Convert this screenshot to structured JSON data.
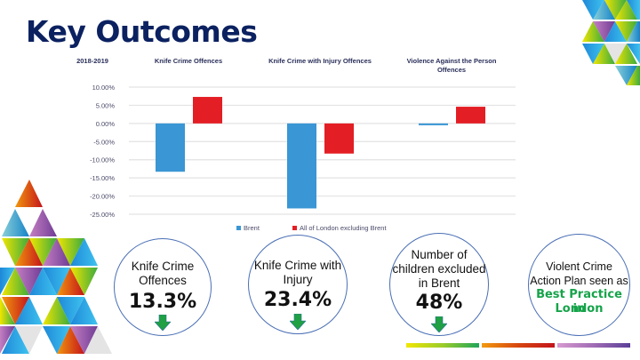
{
  "slide": {
    "title": "Key Outcomes"
  },
  "chart_data": {
    "type": "bar",
    "period_label": "2018-2019",
    "categories": [
      "Knife Crime Offences",
      "Knife Crime with Injury Offences",
      "Violence Against the Person Offences"
    ],
    "category_label_lines": [
      [
        "Knife Crime Offences"
      ],
      [
        "Knife Crime with Injury Offences"
      ],
      [
        "Violence Against the Person",
        "Offences"
      ]
    ],
    "series": [
      {
        "name": "Brent",
        "color": "#3a96d4",
        "values": [
          -13.3,
          -23.4,
          -0.5
        ]
      },
      {
        "name": "All of London excluding Brent",
        "color": "#e31e24",
        "values": [
          7.3,
          -8.3,
          4.6
        ]
      }
    ],
    "ylim": [
      -25,
      10
    ],
    "yticks": [
      10,
      5,
      0,
      -5,
      -10,
      -15,
      -20,
      -25
    ],
    "ytick_labels": [
      "10.00%",
      "5.00%",
      "0.00%",
      "-5.00%",
      "-10.00%",
      "-15.00%",
      "-20.00%",
      "-25.00%"
    ],
    "grid": true,
    "legend": "bottom",
    "xlabel": "",
    "ylabel": ""
  },
  "outcomes": [
    {
      "label_lines": [
        "Knife Crime",
        "Offences"
      ],
      "value": "13.3%",
      "trend": "down",
      "arrow_color": "#1fa043"
    },
    {
      "label_lines": [
        "Knife Crime with",
        "Injury"
      ],
      "value": "23.4%",
      "trend": "down",
      "arrow_color": "#1fa043"
    },
    {
      "label_lines": [
        "Number of",
        "children excluded",
        "in Brent"
      ],
      "value": "48%",
      "trend": "down",
      "arrow_color": "#1fa043"
    },
    {
      "label_lines": [
        "Violent Crime",
        "Action Plan seen as"
      ],
      "highlight_lines": [
        "Best Practice in",
        "London"
      ],
      "highlight_color": "#16a34a"
    }
  ]
}
